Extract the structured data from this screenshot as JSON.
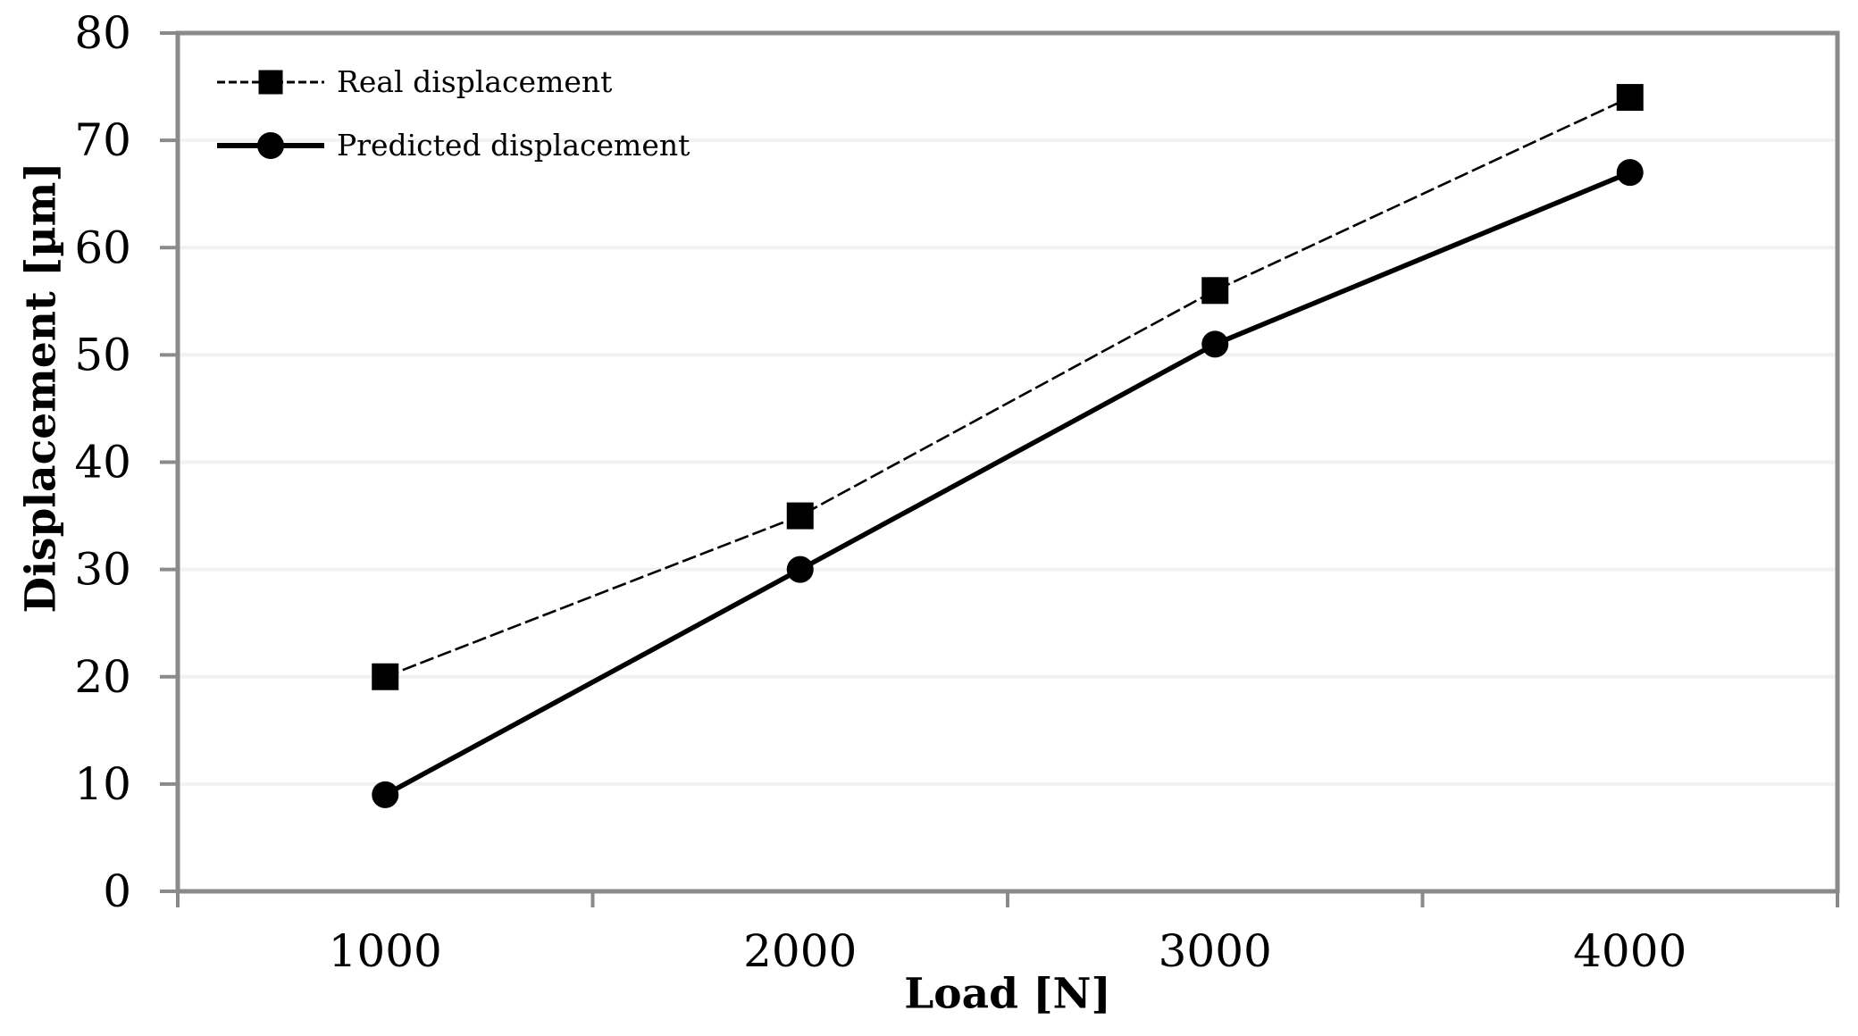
{
  "chart_data": {
    "type": "line",
    "title": "",
    "xlabel": "Load [N]",
    "ylabel": "Displacement [µm]",
    "x": [
      1000,
      2000,
      3000,
      4000
    ],
    "xticklabels": [
      "1000",
      "2000",
      "3000",
      "4000"
    ],
    "series": [
      {
        "name": "Real displacement",
        "marker": "square",
        "line_style": "thin-dashed",
        "values": [
          20,
          35,
          56,
          74
        ]
      },
      {
        "name": "Predicted displacement",
        "marker": "circle",
        "line_style": "thick-solid",
        "values": [
          9,
          30,
          51,
          67
        ]
      }
    ],
    "ylim": [
      0,
      80
    ],
    "yticks": [
      0,
      10,
      20,
      30,
      40,
      50,
      60,
      70,
      80
    ],
    "grid": "horizontal-faint",
    "legend_position": "top-left-inside",
    "colors": {
      "series": "#000000",
      "axis": "#8a8a8a",
      "gridline": "#f2f2f2",
      "text": "#000000",
      "background": "#ffffff"
    }
  }
}
